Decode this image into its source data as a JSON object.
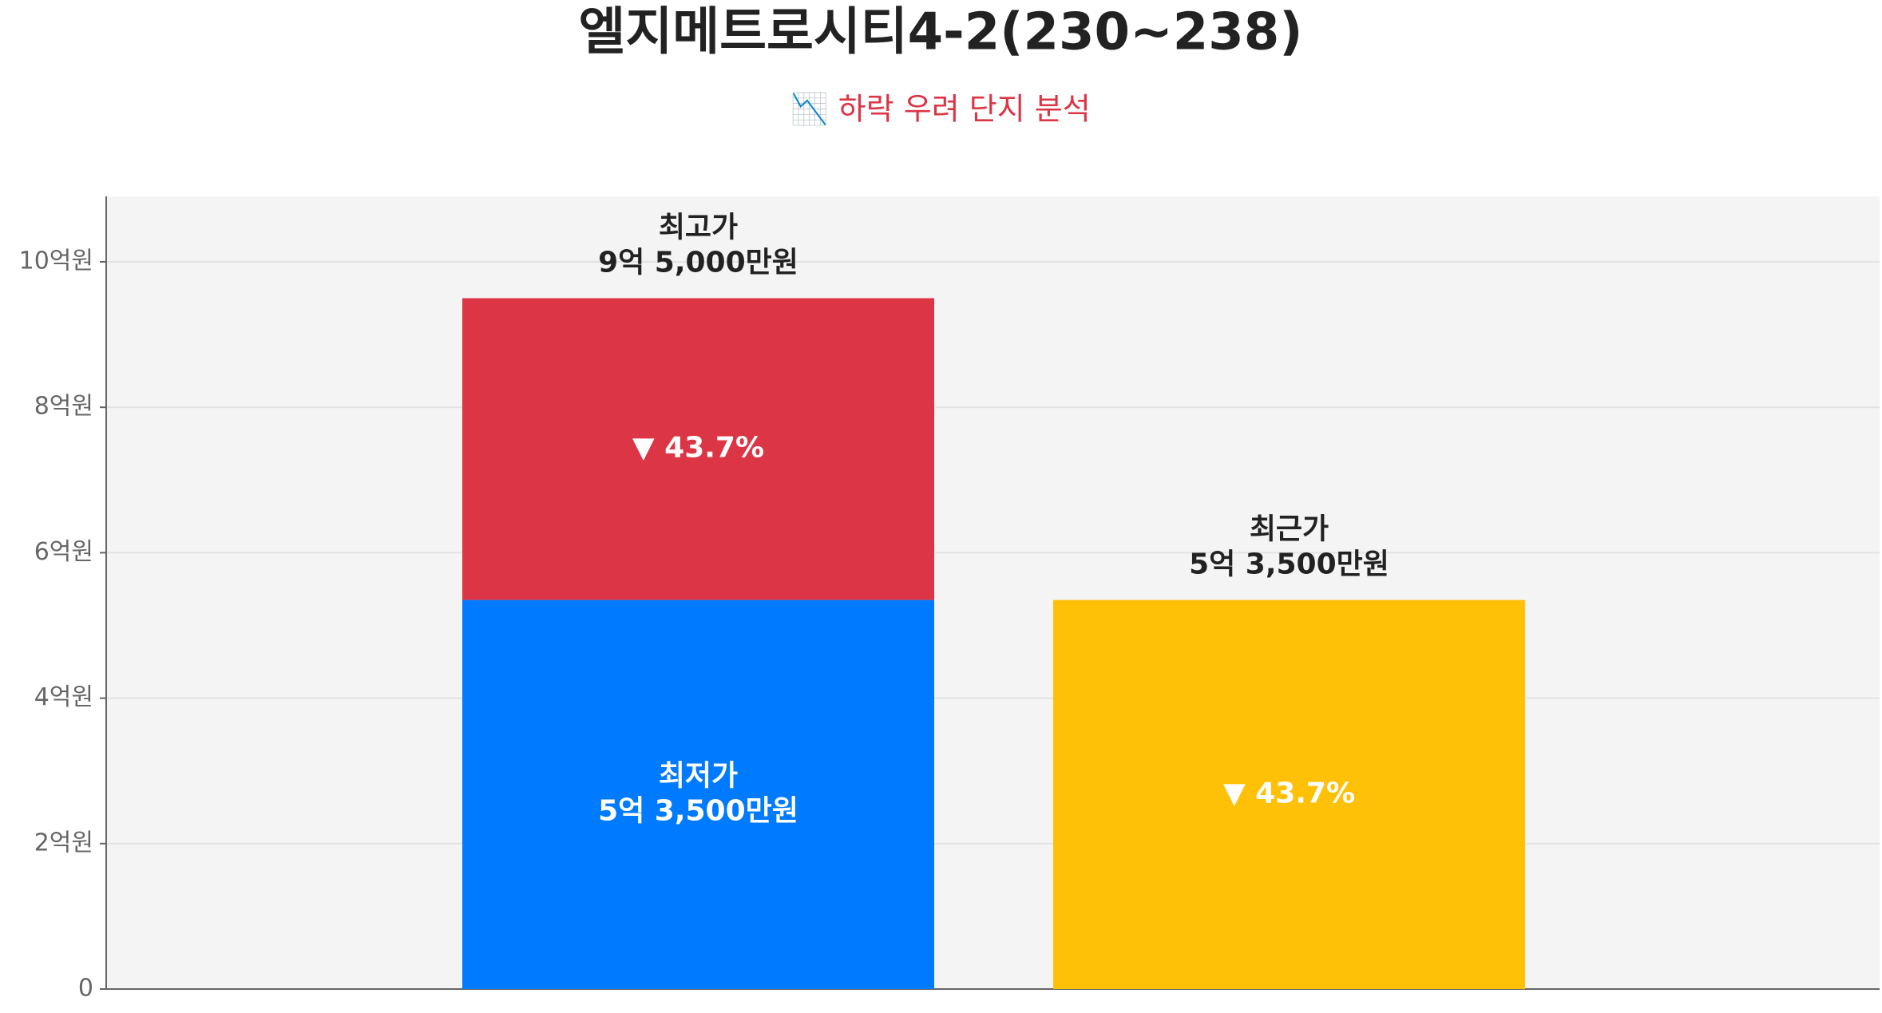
{
  "chart_data": {
    "type": "range-bar",
    "title": "엘지메트로시티4-2(230~238)",
    "subtitle": "📉 하락 우려 단지 분석",
    "ylim": [
      0,
      10.9
    ],
    "yticks": [
      0,
      {
        "value": 2,
        "label": "2억원"
      },
      {
        "value": 4,
        "label": "4억원"
      },
      {
        "value": 6,
        "label": "6억원"
      },
      {
        "value": 8,
        "label": "8억원"
      },
      {
        "value": 10,
        "label": "10억원"
      }
    ],
    "grid": true,
    "low": {
      "name": "최저가",
      "value": 5.35,
      "value_label": "5억 3,500만원",
      "color": "#007bff"
    },
    "high": {
      "name": "최고가",
      "value": 9.5,
      "value_label": "9억 5,000만원",
      "color": "#dc3545"
    },
    "recent": {
      "name": "최근가",
      "value": 5.35,
      "value_label": "5억 3,500만원",
      "color": "#ffc107"
    },
    "change": {
      "value": -43.7,
      "value_label": "▼ 43.7%"
    }
  }
}
